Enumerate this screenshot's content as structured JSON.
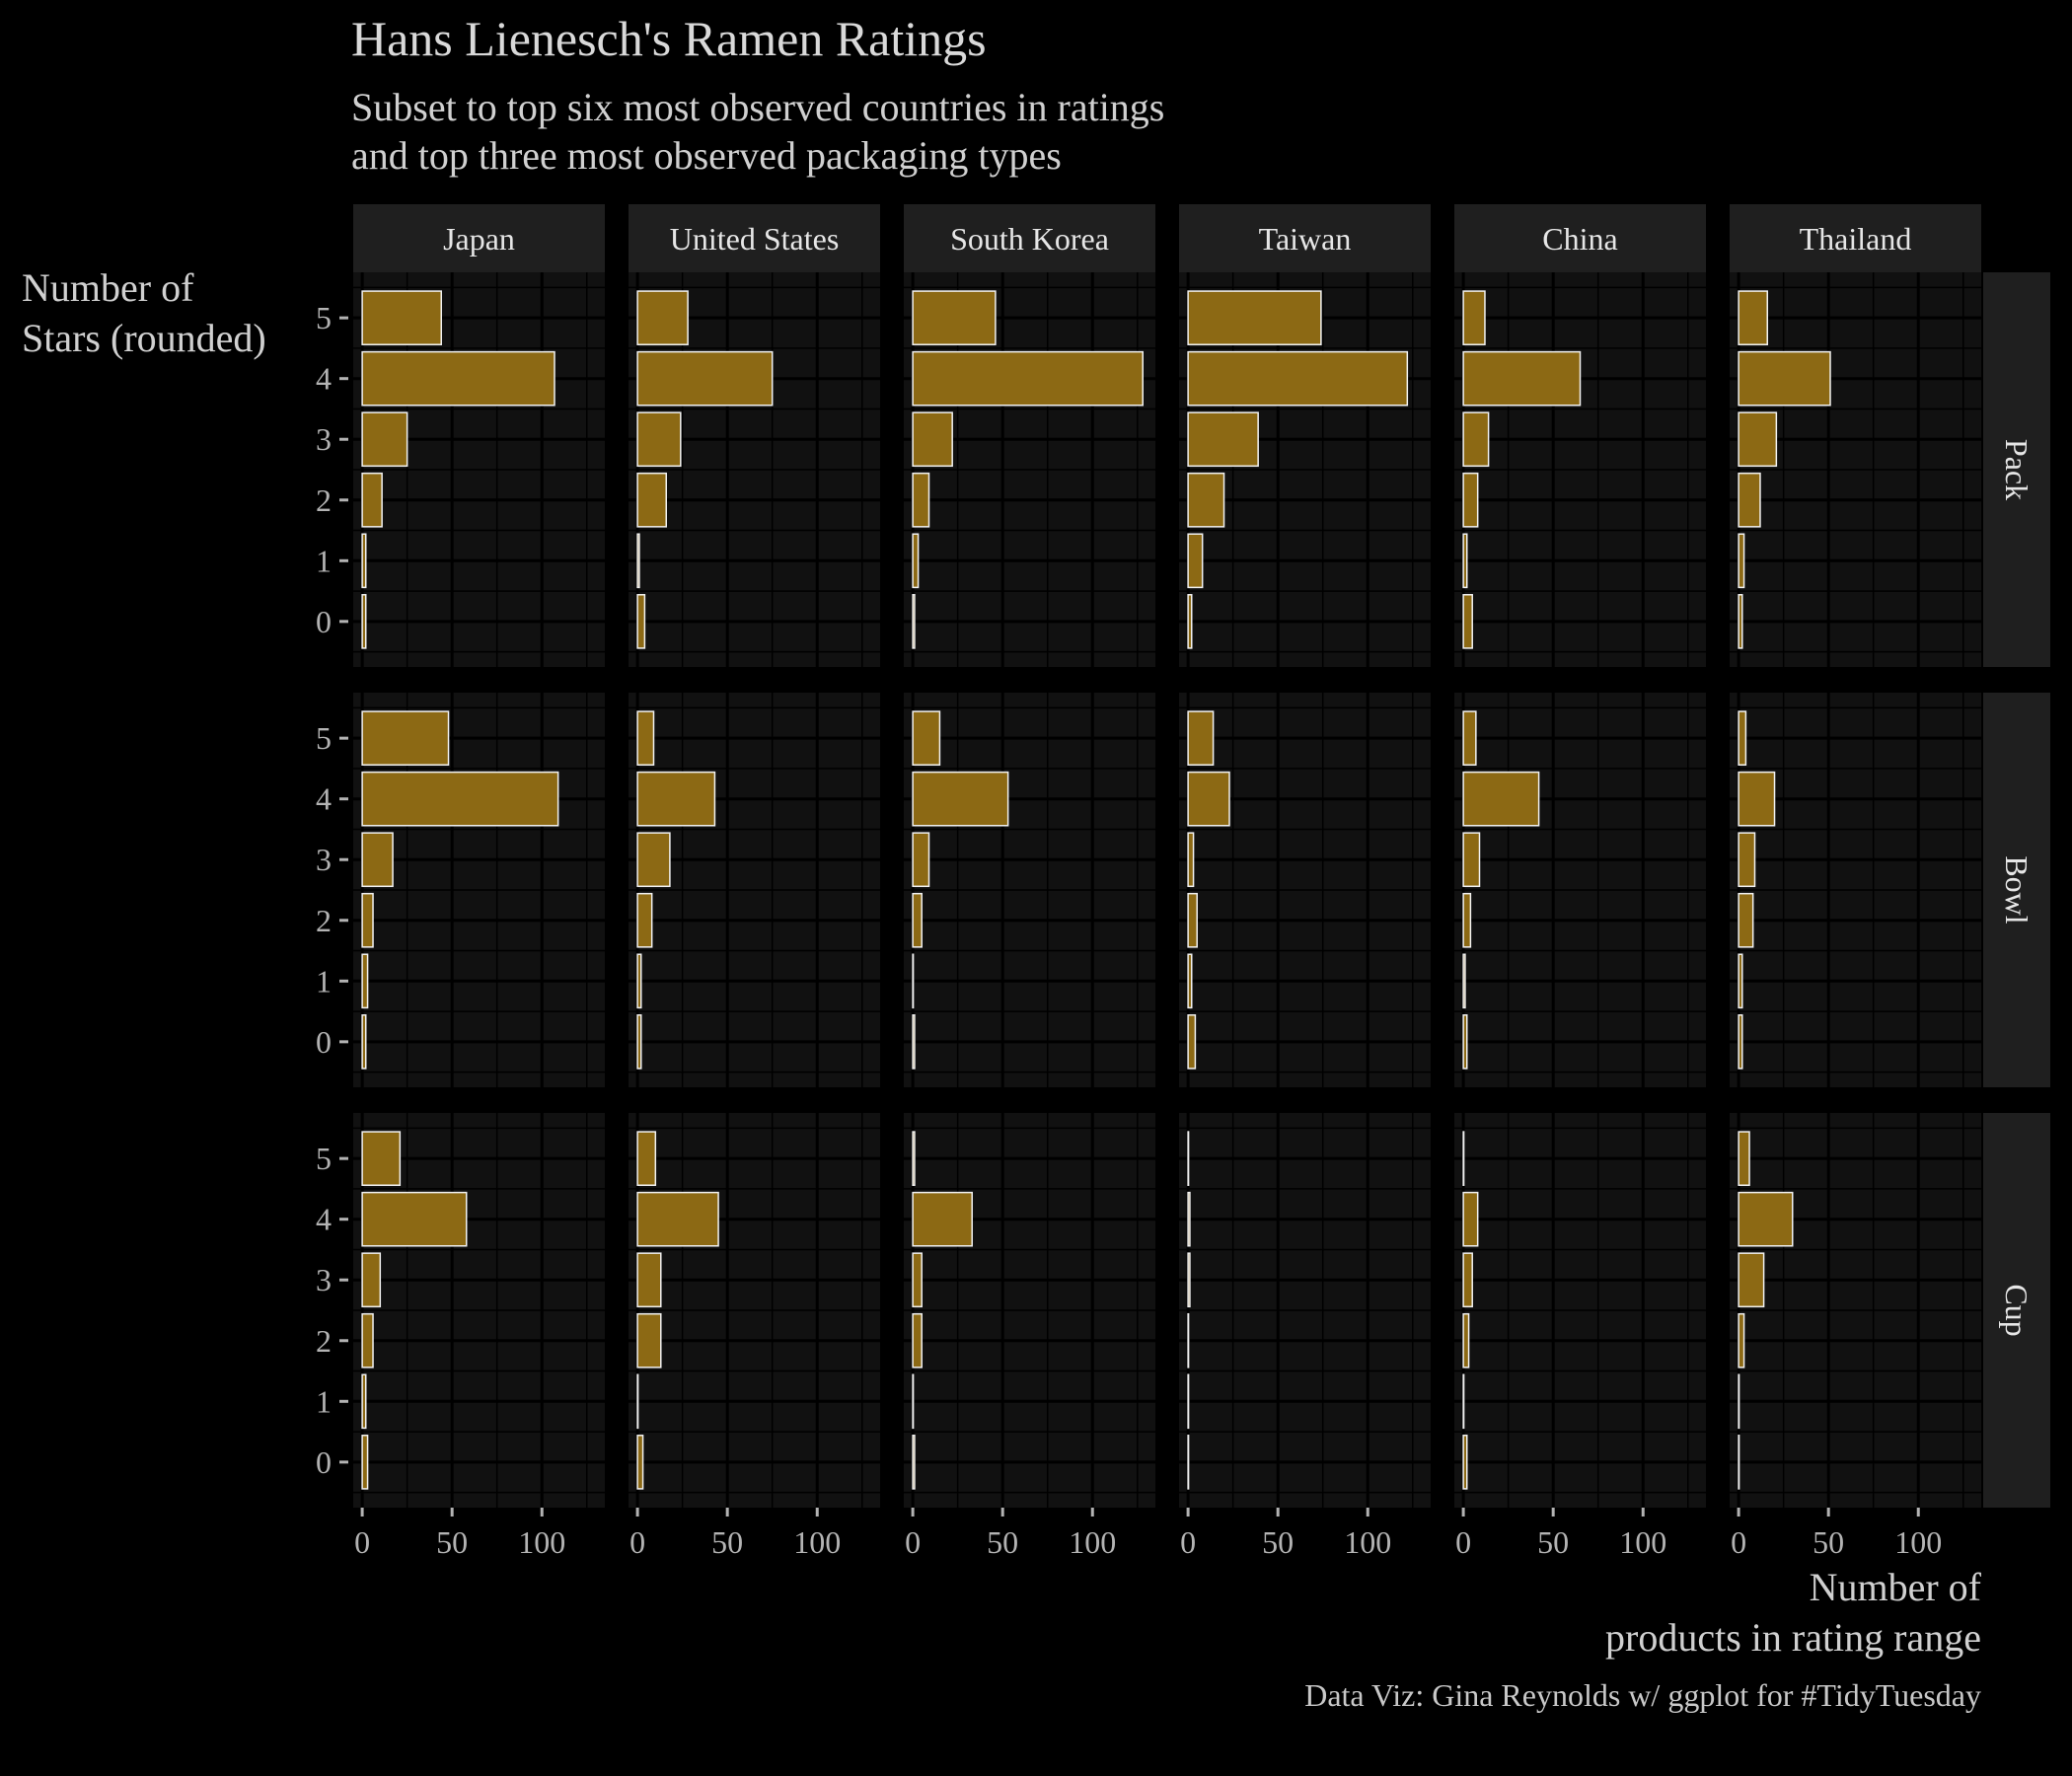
{
  "title": "Hans Lienesch's Ramen Ratings",
  "subtitle_lines": [
    "Subset to top six most observed countries in ratings",
    "and top three most observed packaging types"
  ],
  "ylabel_lines": [
    "Number of",
    "Stars (rounded)"
  ],
  "xlabel_lines": [
    "Number of",
    "products in rating range"
  ],
  "caption": "Data Viz: Gina Reynolds w/ ggplot for #TidyTuesday",
  "colors": {
    "background": "#000000",
    "panel": "#111111",
    "strip": "#1f1f1f",
    "bar_fill": "#8c6914",
    "bar_outline": "#f2f2f2"
  },
  "chart_data": {
    "type": "bar",
    "orientation": "horizontal",
    "facet_columns": [
      "Japan",
      "United States",
      "South Korea",
      "Taiwan",
      "China",
      "Thailand"
    ],
    "facet_rows": [
      "Pack",
      "Bowl",
      "Cup"
    ],
    "categories": [
      "0",
      "1",
      "2",
      "3",
      "4",
      "5"
    ],
    "x_ticks": [
      0,
      50,
      100
    ],
    "xlim": [
      -5,
      135
    ],
    "grid": true,
    "values": {
      "Pack": {
        "Japan": [
          2,
          2,
          11,
          25,
          107,
          44
        ],
        "United States": [
          4,
          1,
          16,
          24,
          75,
          28
        ],
        "South Korea": [
          1,
          3,
          9,
          22,
          128,
          46
        ],
        "Taiwan": [
          2,
          8,
          20,
          39,
          122,
          74
        ],
        "China": [
          5,
          2,
          8,
          14,
          65,
          12
        ],
        "Thailand": [
          2,
          3,
          12,
          21,
          51,
          16
        ]
      },
      "Bowl": {
        "Japan": [
          2,
          3,
          6,
          17,
          109,
          48
        ],
        "United States": [
          2,
          2,
          8,
          18,
          43,
          9
        ],
        "South Korea": [
          1,
          0,
          5,
          9,
          53,
          15
        ],
        "Taiwan": [
          4,
          2,
          5,
          3,
          23,
          14
        ],
        "China": [
          2,
          1,
          4,
          9,
          42,
          7
        ],
        "Thailand": [
          2,
          2,
          8,
          9,
          20,
          4
        ]
      },
      "Cup": {
        "Japan": [
          3,
          2,
          6,
          10,
          58,
          21
        ],
        "United States": [
          3,
          0,
          13,
          13,
          45,
          10
        ],
        "South Korea": [
          1,
          0,
          5,
          5,
          33,
          1
        ],
        "Taiwan": [
          0,
          0,
          0,
          1,
          1,
          0
        ],
        "China": [
          2,
          0,
          3,
          5,
          8,
          0
        ],
        "Thailand": [
          0,
          0,
          3,
          14,
          30,
          6
        ]
      }
    }
  }
}
